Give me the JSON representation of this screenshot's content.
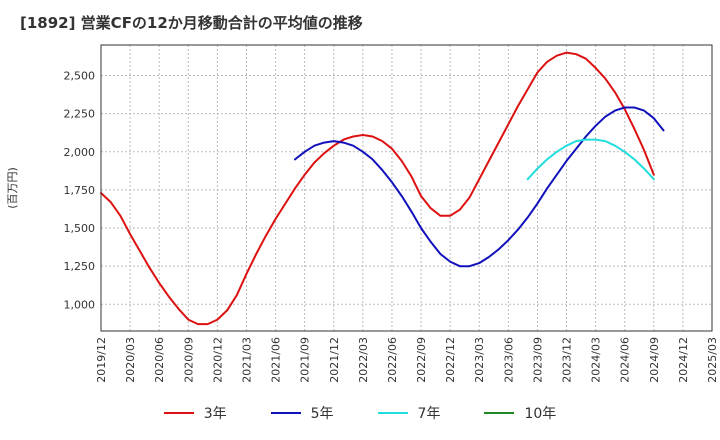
{
  "title": "[1892]  営業CFの12か月移動合計の平均値の推移",
  "chart_data": {
    "type": "line",
    "title": "[1892]  営業CFの12か月移動合計の平均値の推移",
    "ylabel": "(百万円)",
    "xlabel": "",
    "ylim": [
      825,
      2700
    ],
    "y_ticks": [
      1000,
      1250,
      1500,
      1750,
      2000,
      2250,
      2500
    ],
    "y_tick_labels": [
      "1,000",
      "1,250",
      "1,500",
      "1,750",
      "2,000",
      "2,250",
      "2,500"
    ],
    "x_tick_labels": [
      "2019/12",
      "2020/03",
      "2020/06",
      "2020/09",
      "2020/12",
      "2021/03",
      "2021/06",
      "2021/09",
      "2021/12",
      "2022/03",
      "2022/06",
      "2022/09",
      "2022/12",
      "2023/03",
      "2023/06",
      "2023/09",
      "2023/12",
      "2024/03",
      "2024/06",
      "2024/09",
      "2024/12",
      "2025/03"
    ],
    "grid": true,
    "legend_position": "bottom",
    "series": [
      {
        "name": "3年",
        "color": "#dd1111",
        "start_month": "2019/12",
        "values": [
          1730,
          1670,
          1580,
          1460,
          1350,
          1240,
          1140,
          1050,
          970,
          900,
          870,
          870,
          900,
          960,
          1060,
          1200,
          1330,
          1450,
          1560,
          1660,
          1760,
          1850,
          1930,
          1990,
          2040,
          2080,
          2100,
          2110,
          2100,
          2070,
          2020,
          1940,
          1840,
          1710,
          1630,
          1580,
          1580,
          1620,
          1700,
          1820,
          1940,
          2060,
          2180,
          2300,
          2410,
          2520,
          2590,
          2630,
          2650,
          2640,
          2610,
          2550,
          2480,
          2390,
          2280,
          2150,
          2010,
          1850
        ]
      },
      {
        "name": "5年",
        "color": "#1111bb",
        "start_month": "2021/08",
        "values": [
          1950,
          2000,
          2040,
          2060,
          2070,
          2060,
          2040,
          2000,
          1950,
          1880,
          1800,
          1710,
          1610,
          1500,
          1410,
          1330,
          1280,
          1250,
          1250,
          1270,
          1310,
          1360,
          1420,
          1490,
          1570,
          1660,
          1760,
          1850,
          1940,
          2020,
          2100,
          2170,
          2230,
          2270,
          2290,
          2290,
          2270,
          2220,
          2140
        ]
      },
      {
        "name": "7年",
        "color": "#22dddd",
        "start_month": "2023/08",
        "values": [
          1820,
          1890,
          1950,
          2000,
          2040,
          2070,
          2080,
          2080,
          2070,
          2040,
          2000,
          1950,
          1890,
          1820
        ]
      },
      {
        "name": "10年",
        "color": "#228822",
        "start_month": "",
        "values": []
      }
    ]
  }
}
